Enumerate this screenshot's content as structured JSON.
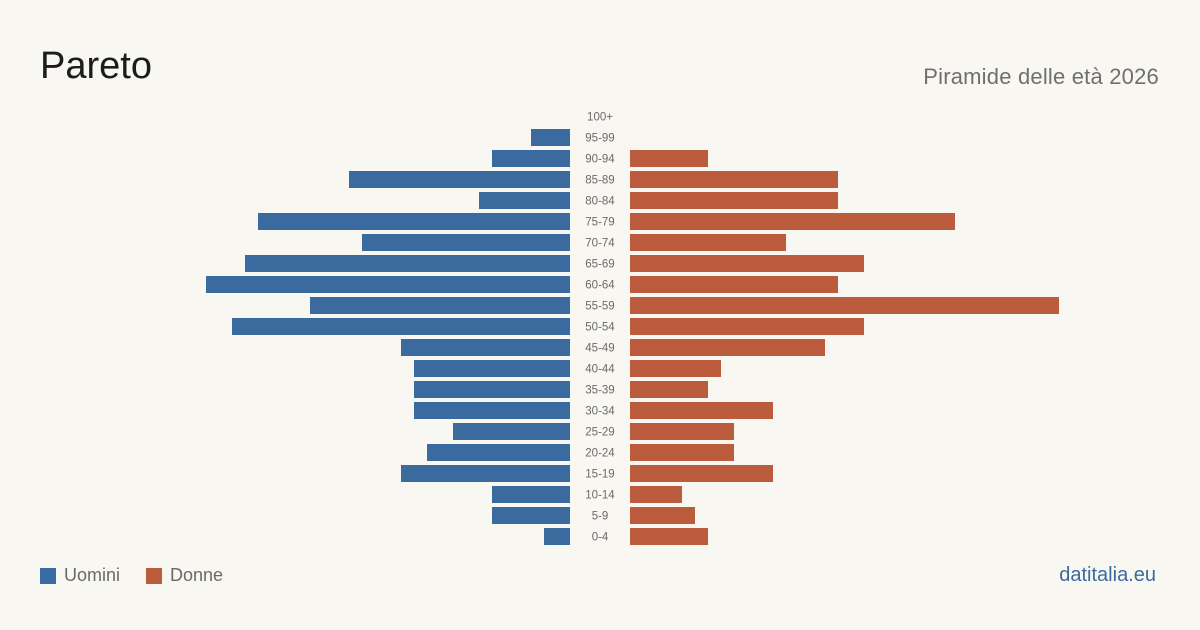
{
  "title": "Pareto",
  "subtitle": "Piramide delle età 2026",
  "source": "datitalia.eu",
  "colors": {
    "male": "#3a6a9e",
    "female": "#bb5c3c",
    "background": "#f9f7f2",
    "age_label": "#6a6a6a"
  },
  "legend": {
    "male_label": "Uomini",
    "female_label": "Donne"
  },
  "chart_data": {
    "type": "bar",
    "orientation": "horizontal-pyramid",
    "categories": [
      "100+",
      "95-99",
      "90-94",
      "85-89",
      "80-84",
      "75-79",
      "70-74",
      "65-69",
      "60-64",
      "55-59",
      "50-54",
      "45-49",
      "40-44",
      "35-39",
      "30-34",
      "25-29",
      "20-24",
      "15-19",
      "10-14",
      "5-9",
      "0-4"
    ],
    "series": [
      {
        "name": "Uomini",
        "values": [
          0,
          3,
          6,
          17,
          7,
          24,
          16,
          25,
          28,
          20,
          26,
          13,
          12,
          12,
          12,
          9,
          11,
          13,
          6,
          6,
          2
        ]
      },
      {
        "name": "Donne",
        "values": [
          0,
          0,
          6,
          16,
          16,
          25,
          12,
          18,
          16,
          33,
          18,
          15,
          7,
          6,
          11,
          8,
          8,
          11,
          4,
          5,
          6
        ]
      }
    ],
    "legend": "bottom-left",
    "grid": false
  }
}
